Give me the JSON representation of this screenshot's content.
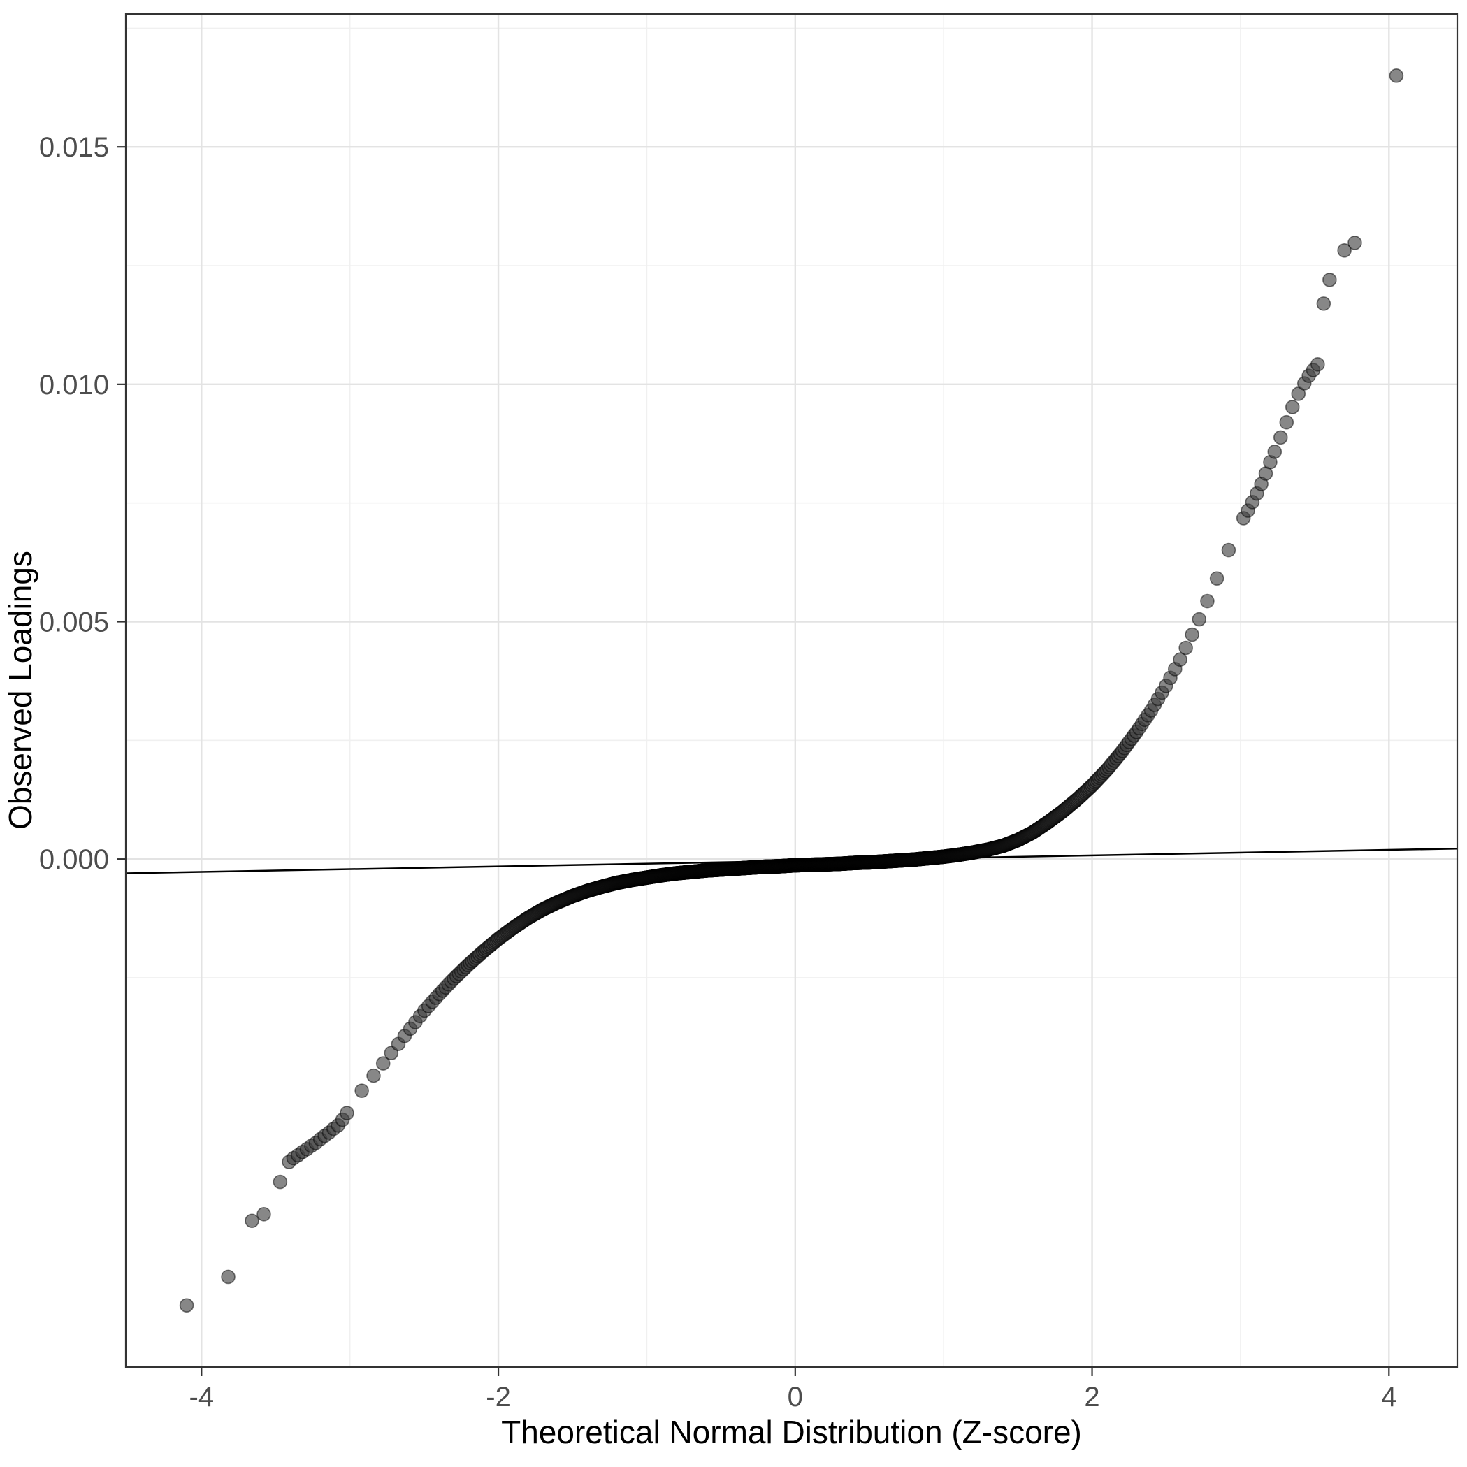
{
  "chart_data": {
    "type": "scatter",
    "subtype": "qq_plot",
    "title": "",
    "xlabel": "Theoretical Normal Distribution (Z-score)",
    "ylabel": "Observed Loadings",
    "xlim": [
      -4.51,
      4.46
    ],
    "ylim": [
      -0.0107,
      0.0178
    ],
    "x_ticks": {
      "major": [
        -4,
        -2,
        0,
        2,
        4
      ],
      "minor": [
        -3,
        -1,
        1,
        3
      ],
      "labels": [
        "-4",
        "-2",
        "0",
        "2",
        "4"
      ]
    },
    "y_ticks": {
      "major": [
        0,
        0.005,
        0.01,
        0.015
      ],
      "minor": [
        -0.0025,
        0.0025,
        0.0075,
        0.0125,
        0.0175
      ],
      "labels": [
        "0.000",
        "0.005",
        "0.010",
        "0.015"
      ]
    },
    "grid": {
      "background": "#ffffff",
      "major_color": "#e3e3e3",
      "minor_color": "#f0f0f0",
      "border_color": "#333333",
      "tick_color": "#333333"
    },
    "text_style": {
      "tick_label_color": "#4d4d4d",
      "axis_title_color": "#000000"
    },
    "reference_line": {
      "x1": -4.51,
      "y1": -0.0003,
      "x2": 4.46,
      "y2": 0.00022,
      "color": "#000000",
      "width": 2.5
    },
    "points_style": {
      "radius": 9.5,
      "fill": "#3d3d3d",
      "fill_opacity": 0.62,
      "stroke": "#000000",
      "stroke_opacity": 0.5,
      "stroke_width": 1.6
    },
    "dense_points": {
      "n": 2000,
      "z_min": -3.0,
      "z_max": 3.0
    },
    "quantile_curve": [
      [
        -3.0,
        -0.0052
      ],
      [
        -2.9,
        -0.0048
      ],
      [
        -2.8,
        -0.0044
      ],
      [
        -2.7,
        -0.004
      ],
      [
        -2.6,
        -0.0036
      ],
      [
        -2.5,
        -0.0032
      ],
      [
        -2.4,
        -0.00285
      ],
      [
        -2.3,
        -0.00252
      ],
      [
        -2.2,
        -0.00222
      ],
      [
        -2.1,
        -0.00194
      ],
      [
        -2.0,
        -0.00168
      ],
      [
        -1.9,
        -0.00145
      ],
      [
        -1.8,
        -0.00124
      ],
      [
        -1.7,
        -0.00106
      ],
      [
        -1.6,
        -0.00091
      ],
      [
        -1.5,
        -0.00078
      ],
      [
        -1.4,
        -0.00067
      ],
      [
        -1.3,
        -0.00058
      ],
      [
        -1.2,
        -0.0005
      ],
      [
        -1.1,
        -0.00044
      ],
      [
        -1.0,
        -0.00039
      ],
      [
        -0.9,
        -0.00034
      ],
      [
        -0.8,
        -0.0003
      ],
      [
        -0.7,
        -0.00027
      ],
      [
        -0.6,
        -0.00024
      ],
      [
        -0.5,
        -0.00022
      ],
      [
        -0.4,
        -0.0002
      ],
      [
        -0.3,
        -0.00018
      ],
      [
        -0.2,
        -0.00016
      ],
      [
        -0.1,
        -0.00015
      ],
      [
        0.0,
        -0.00013
      ],
      [
        0.1,
        -0.00012
      ],
      [
        0.2,
        -0.00011
      ],
      [
        0.3,
        -0.0001
      ],
      [
        0.4,
        -8e-05
      ],
      [
        0.5,
        -7e-05
      ],
      [
        0.6,
        -5e-05
      ],
      [
        0.7,
        -3e-05
      ],
      [
        0.8,
        -1e-05
      ],
      [
        0.9,
        2e-05
      ],
      [
        1.0,
        5e-05
      ],
      [
        1.1,
        9e-05
      ],
      [
        1.2,
        0.00014
      ],
      [
        1.3,
        0.0002
      ],
      [
        1.4,
        0.00028
      ],
      [
        1.5,
        0.0004
      ],
      [
        1.6,
        0.00056
      ],
      [
        1.7,
        0.00077
      ],
      [
        1.8,
        0.001
      ],
      [
        1.9,
        0.00126
      ],
      [
        2.0,
        0.00155
      ],
      [
        2.1,
        0.00188
      ],
      [
        2.2,
        0.00226
      ],
      [
        2.3,
        0.00268
      ],
      [
        2.4,
        0.00314
      ],
      [
        2.5,
        0.00366
      ],
      [
        2.6,
        0.00424
      ],
      [
        2.7,
        0.0049
      ],
      [
        2.8,
        0.0056
      ],
      [
        2.9,
        0.00636
      ],
      [
        3.0,
        0.0071
      ]
    ],
    "tail_points_left": [
      [
        -4.1,
        -0.0094
      ],
      [
        -3.82,
        -0.0088
      ],
      [
        -3.66,
        -0.00762
      ],
      [
        -3.58,
        -0.00748
      ],
      [
        -3.47,
        -0.0068
      ],
      [
        -3.41,
        -0.00638
      ],
      [
        -3.38,
        -0.0063
      ],
      [
        -3.35,
        -0.00624
      ],
      [
        -3.32,
        -0.00617
      ],
      [
        -3.29,
        -0.00611
      ],
      [
        -3.26,
        -0.00604
      ],
      [
        -3.23,
        -0.00598
      ],
      [
        -3.2,
        -0.0059
      ],
      [
        -3.17,
        -0.00583
      ],
      [
        -3.14,
        -0.00576
      ],
      [
        -3.11,
        -0.00568
      ],
      [
        -3.08,
        -0.00561
      ],
      [
        -3.05,
        -0.00549
      ],
      [
        -3.02,
        -0.00535
      ]
    ],
    "tail_points_right": [
      [
        3.02,
        0.00718
      ],
      [
        3.05,
        0.00734
      ],
      [
        3.08,
        0.00752
      ],
      [
        3.11,
        0.0077
      ],
      [
        3.14,
        0.0079
      ],
      [
        3.17,
        0.00812
      ],
      [
        3.2,
        0.00836
      ],
      [
        3.23,
        0.00858
      ],
      [
        3.27,
        0.00888
      ],
      [
        3.31,
        0.0092
      ],
      [
        3.35,
        0.00952
      ],
      [
        3.39,
        0.0098
      ],
      [
        3.43,
        0.01002
      ],
      [
        3.46,
        0.01018
      ],
      [
        3.49,
        0.0103
      ],
      [
        3.52,
        0.01042
      ],
      [
        3.56,
        0.0117
      ],
      [
        3.6,
        0.0122
      ],
      [
        3.7,
        0.01282
      ],
      [
        3.77,
        0.01298
      ],
      [
        4.05,
        0.0165
      ]
    ]
  }
}
